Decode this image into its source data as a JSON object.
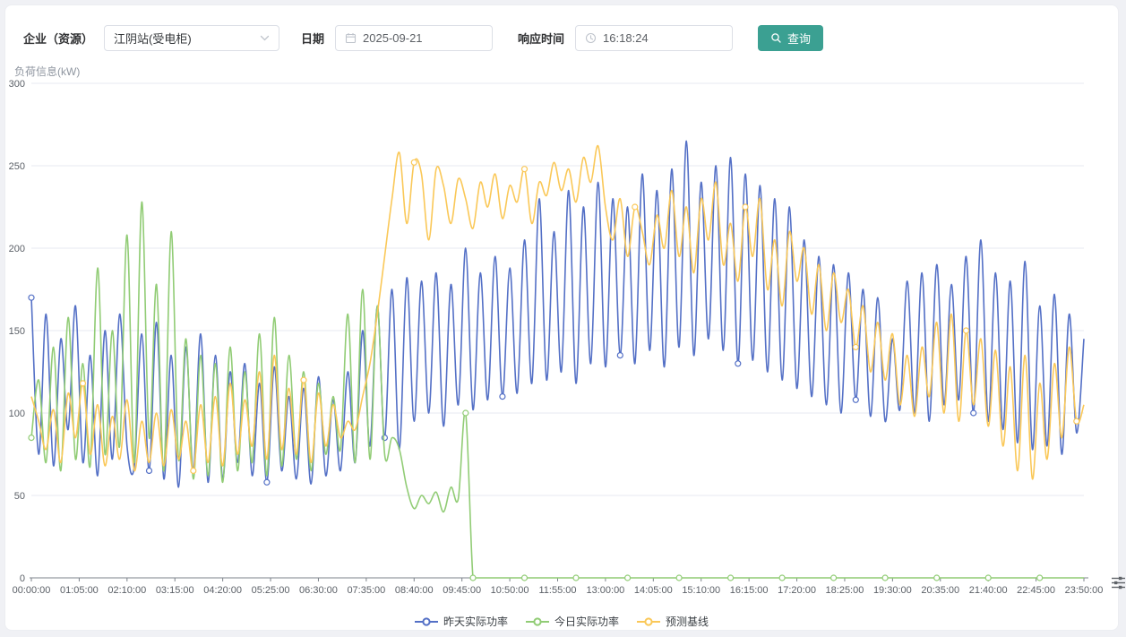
{
  "page": {
    "background": "#f0f1f5",
    "card_background": "#ffffff"
  },
  "toolbar": {
    "enterprise_label": "企业（资源）",
    "enterprise_value": "江阴站(受电柜)",
    "date_label": "日期",
    "date_value": "2025-09-21",
    "time_label": "响应时间",
    "time_value": "16:18:24",
    "query_button": "查询",
    "button_color": "#3ba092"
  },
  "icons": {
    "select_chevron": "chevron-down",
    "date_field": "calendar",
    "time_field": "clock",
    "query_button": "search-magnifier",
    "bottom_right": "sliders"
  },
  "chart_data": {
    "type": "line",
    "title": "负荷信息(kW)",
    "ylabel": "负荷信息(kW)",
    "xlabel": "",
    "ylim": [
      0,
      300
    ],
    "y_interval": 50,
    "y_ticks": [
      0,
      50,
      100,
      150,
      200,
      250,
      300
    ],
    "grid": true,
    "smooth": true,
    "legend_position": "bottom",
    "sample_interval_minutes": 10,
    "x_start": "00:00:00",
    "x_end": "23:50:00",
    "x_ticks": [
      "00:00:00",
      "01:05:00",
      "02:10:00",
      "03:15:00",
      "04:20:00",
      "05:25:00",
      "06:30:00",
      "07:35:00",
      "08:40:00",
      "09:45:00",
      "10:50:00",
      "11:55:00",
      "13:00:00",
      "14:05:00",
      "15:10:00",
      "16:15:00",
      "17:20:00",
      "18:25:00",
      "19:30:00",
      "20:35:00",
      "21:40:00",
      "22:45:00",
      "23:50:00"
    ],
    "series": [
      {
        "name": "昨天实际功率",
        "color": "#5470c6",
        "values": [
          170,
          75,
          160,
          68,
          145,
          90,
          165,
          70,
          135,
          62,
          150,
          72,
          160,
          80,
          68,
          148,
          65,
          155,
          60,
          135,
          55,
          140,
          65,
          148,
          58,
          135,
          60,
          125,
          70,
          130,
          62,
          118,
          58,
          128,
          65,
          110,
          60,
          115,
          57,
          122,
          62,
          108,
          65,
          125,
          70,
          150,
          80,
          165,
          85,
          175,
          78,
          182,
          95,
          180,
          100,
          185,
          92,
          178,
          105,
          200,
          102,
          185,
          108,
          195,
          110,
          188,
          112,
          205,
          118,
          230,
          120,
          210,
          125,
          235,
          118,
          225,
          130,
          240,
          128,
          230,
          135,
          225,
          130,
          245,
          138,
          235,
          128,
          248,
          140,
          265,
          135,
          240,
          145,
          250,
          138,
          255,
          130,
          245,
          132,
          238,
          125,
          230,
          120,
          225,
          115,
          205,
          110,
          195,
          105,
          190,
          100,
          185,
          108,
          175,
          98,
          170,
          95,
          145,
          102,
          180,
          100,
          185,
          95,
          190,
          105,
          178,
          108,
          195,
          100,
          205,
          95,
          185,
          90,
          180,
          82,
          192,
          78,
          165,
          80,
          172,
          75,
          160,
          88,
          145
        ]
      },
      {
        "name": "今日实际功率",
        "color": "#91cc75",
        "values": [
          85,
          120,
          70,
          140,
          65,
          158,
          72,
          130,
          68,
          188,
          75,
          150,
          80,
          208,
          70,
          228,
          85,
          178,
          65,
          210,
          72,
          145,
          60,
          135,
          62,
          130,
          58,
          140,
          65,
          125,
          70,
          148,
          62,
          158,
          68,
          135,
          72,
          125,
          65,
          118,
          75,
          110,
          78,
          160,
          70,
          175,
          72,
          165,
          75,
          85,
          78,
          55,
          42,
          50,
          45,
          52,
          40,
          55,
          48,
          100,
          0,
          0,
          0,
          0,
          0,
          0,
          0,
          0,
          0,
          0,
          0,
          0,
          0,
          0,
          0,
          0,
          0,
          0,
          0,
          0,
          0,
          0,
          0,
          0,
          0,
          0,
          0,
          0,
          0,
          0,
          0,
          0,
          0,
          0,
          0,
          0,
          0,
          0,
          0,
          0,
          0,
          0,
          0,
          0,
          0,
          0,
          0,
          0,
          0,
          0,
          0,
          0,
          0,
          0,
          0,
          0,
          0,
          0,
          0,
          0,
          0,
          0,
          0,
          0,
          0,
          0,
          0,
          0,
          0,
          0,
          0,
          0,
          0,
          0,
          0,
          0,
          0,
          0,
          0,
          0,
          0,
          0,
          0,
          0
        ]
      },
      {
        "name": "预测基线",
        "color": "#fac858",
        "values": [
          110,
          95,
          78,
          102,
          70,
          112,
          85,
          118,
          75,
          105,
          68,
          98,
          72,
          108,
          65,
          95,
          70,
          100,
          68,
          102,
          72,
          95,
          65,
          105,
          70,
          110,
          68,
          118,
          75,
          108,
          80,
          125,
          72,
          135,
          78,
          115,
          75,
          120,
          70,
          112,
          80,
          105,
          85,
          95,
          90,
          110,
          130,
          160,
          195,
          230,
          258,
          215,
          252,
          245,
          205,
          248,
          238,
          215,
          242,
          230,
          212,
          240,
          225,
          245,
          218,
          238,
          228,
          248,
          215,
          240,
          232,
          252,
          235,
          248,
          228,
          255,
          240,
          262,
          225,
          205,
          230,
          195,
          225,
          210,
          190,
          220,
          200,
          235,
          195,
          225,
          185,
          230,
          205,
          240,
          190,
          215,
          180,
          225,
          195,
          230,
          175,
          205,
          165,
          210,
          180,
          200,
          160,
          190,
          150,
          185,
          155,
          175,
          140,
          165,
          125,
          155,
          120,
          148,
          105,
          135,
          98,
          140,
          110,
          155,
          100,
          160,
          95,
          150,
          105,
          145,
          92,
          138,
          80,
          128,
          65,
          135,
          60,
          118,
          72,
          130,
          85,
          140,
          95,
          105
        ]
      }
    ]
  }
}
